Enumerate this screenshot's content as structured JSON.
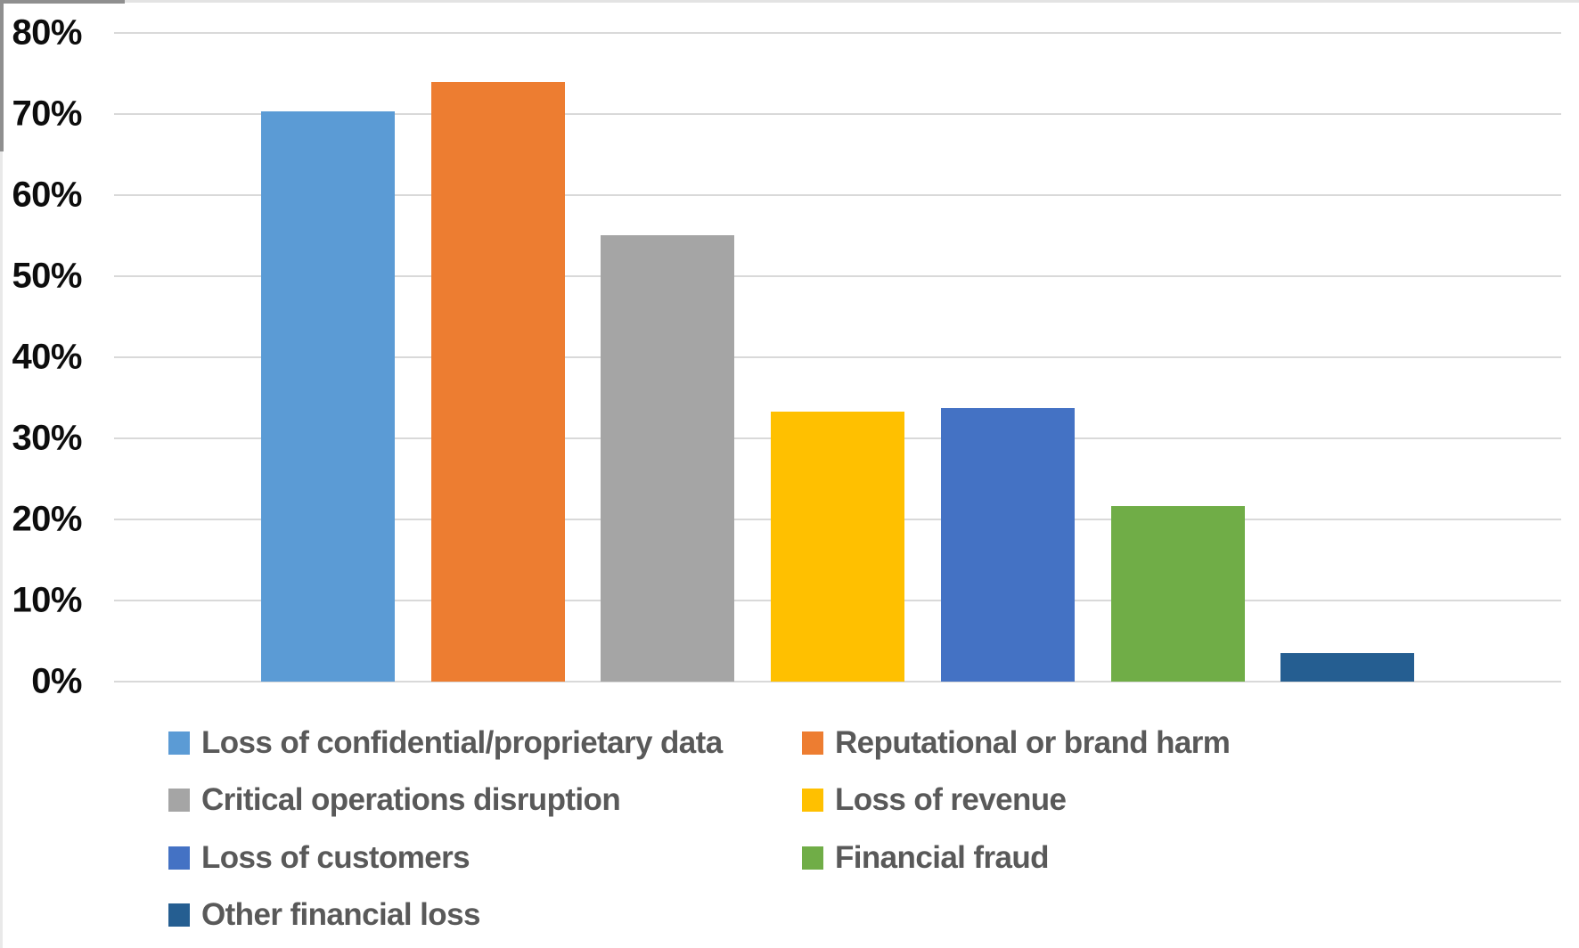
{
  "chart_data": {
    "type": "bar",
    "title": "",
    "xlabel": "",
    "ylabel": "",
    "ylim": [
      0,
      80
    ],
    "grid": "horizontal-only",
    "gridline_color": "#d9d9d9",
    "legend_position": "bottom-two-columns",
    "yticks": [
      {
        "label": "0%",
        "value": 0
      },
      {
        "label": "10%",
        "value": 10
      },
      {
        "label": "20%",
        "value": 20
      },
      {
        "label": "30%",
        "value": 30
      },
      {
        "label": "40%",
        "value": 40
      },
      {
        "label": "50%",
        "value": 50
      },
      {
        "label": "60%",
        "value": 60
      },
      {
        "label": "70%",
        "value": 70
      },
      {
        "label": "80%",
        "value": 80
      }
    ],
    "categories": [
      "Loss of confidential/proprietary data",
      "Reputational or brand harm",
      "Critical operations disruption",
      "Loss of revenue",
      "Loss of customers",
      "Financial fraud",
      "Other financial loss"
    ],
    "values": [
      70.3,
      74.0,
      55.0,
      33.3,
      33.7,
      21.7,
      3.5
    ],
    "colors": [
      "#5B9BD5",
      "#ED7D31",
      "#A5A5A5",
      "#FFC000",
      "#4472C4",
      "#70AD47",
      "#255E91"
    ],
    "legend": [
      {
        "label": "Loss of confidential/proprietary data",
        "color": "#5B9BD5"
      },
      {
        "label": "Reputational or brand harm",
        "color": "#ED7D31"
      },
      {
        "label": "Critical operations disruption",
        "color": "#A5A5A5"
      },
      {
        "label": "Loss of revenue",
        "color": "#FFC000"
      },
      {
        "label": "Loss of customers",
        "color": "#4472C4"
      },
      {
        "label": "Financial fraud",
        "color": "#70AD47"
      },
      {
        "label": "Other financial loss",
        "color": "#255E91"
      }
    ],
    "axis_text_color": "#000000",
    "legend_text_color": "#595959"
  }
}
